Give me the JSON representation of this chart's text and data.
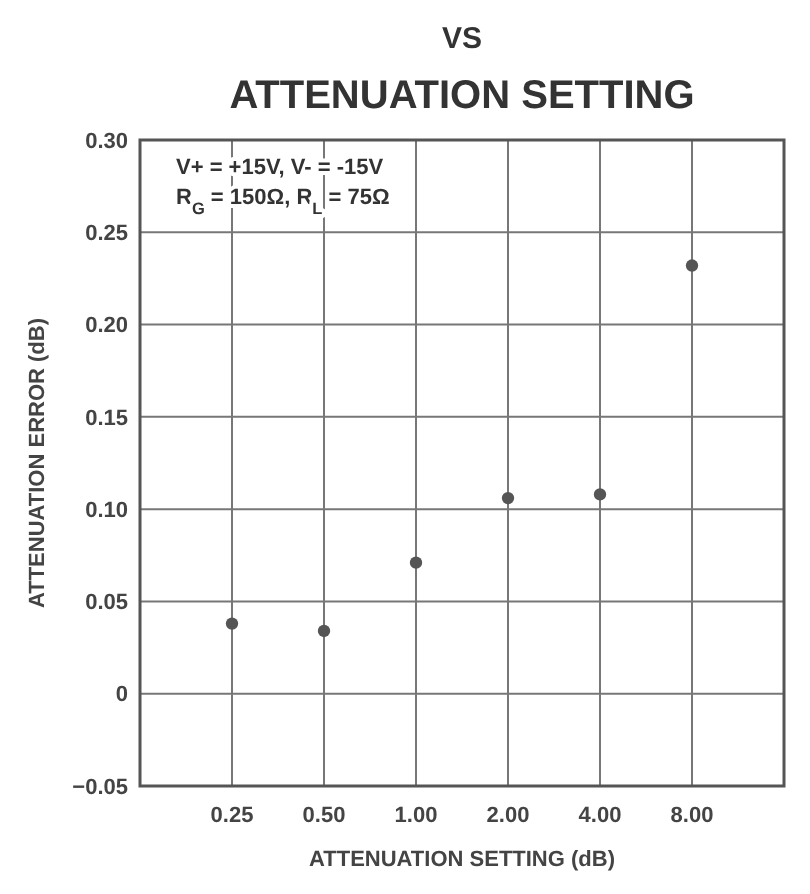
{
  "chart_data": {
    "type": "scatter",
    "title": "VS",
    "subtitle": "ATTENUATION SETTING",
    "xlabel": "ATTENUATION SETTING (dB)",
    "ylabel": "ATTENUATION ERROR (dB)",
    "categories": [
      "0.25",
      "0.50",
      "1.00",
      "2.00",
      "4.00",
      "8.00"
    ],
    "series": [
      {
        "color": "#555555",
        "values": [
          0.038,
          0.034,
          0.071,
          0.106,
          0.108,
          0.232
        ]
      }
    ],
    "ylim": [
      -0.05,
      0.3
    ],
    "yticks": [
      {
        "value": -0.05,
        "label": "−0.05"
      },
      {
        "value": 0,
        "label": "0"
      },
      {
        "value": 0.05,
        "label": "0.05"
      },
      {
        "value": 0.1,
        "label": "0.10"
      },
      {
        "value": 0.15,
        "label": "0.15"
      },
      {
        "value": 0.2,
        "label": "0.20"
      },
      {
        "value": 0.25,
        "label": "0.25"
      },
      {
        "value": 0.3,
        "label": "0.30"
      }
    ],
    "grid": true,
    "marker": "circle",
    "annotations": [
      "V+ = +15V, V- = -15V",
      "R$_{G}$ = 150Ω, R$_{L}$ = 75Ω"
    ]
  }
}
